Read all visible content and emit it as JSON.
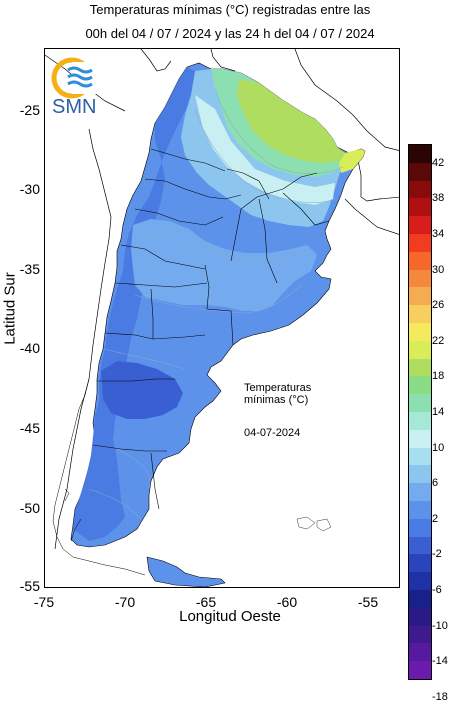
{
  "title": {
    "line1": "Temperaturas mínimas (°C) registradas entre las",
    "line2": "00h del 04 / 07 / 2024 y las 24 h del 04 / 07 / 2024"
  },
  "logo": {
    "text": "SMN"
  },
  "axes": {
    "xlabel": "Longitud Oeste",
    "ylabel": "Latitud Sur",
    "xticks": [
      "-75",
      "-70",
      "-65",
      "-60",
      "-55"
    ],
    "yticks": [
      "-25",
      "-30",
      "-35",
      "-40",
      "-45",
      "-50",
      "-55"
    ]
  },
  "annotation": {
    "title_line1": "Temperaturas",
    "title_line2": "mínimas (°C)",
    "date": "04-07-2024"
  },
  "legend": {
    "labels": [
      "42",
      "38",
      "34",
      "30",
      "26",
      "22",
      "18",
      "14",
      "10",
      "6",
      "2",
      "-2",
      "-6",
      "-10",
      "-14",
      "-18"
    ],
    "colors": [
      "#2a0505",
      "#5c0808",
      "#8a0b0b",
      "#b01010",
      "#d81c1c",
      "#f03d20",
      "#f4682b",
      "#f4893e",
      "#f4ab52",
      "#f7cf61",
      "#f5ea5e",
      "#d9ec5a",
      "#aedd60",
      "#89dc84",
      "#8cdfb0",
      "#a6e8d6",
      "#c8f0f2",
      "#a7dff0",
      "#8cc6ef",
      "#74aaee",
      "#5d92ea",
      "#4a7be3",
      "#3a5fd2",
      "#2a44bd",
      "#1e31a6",
      "#1a2089",
      "#2a1a86",
      "#3e1a8e",
      "#561aa0",
      "#6a1aac"
    ]
  },
  "chart_data": {
    "type": "map",
    "variable": "Temperaturas mínimas (°C)",
    "date": "04-07-2024",
    "lon_range": [
      -75,
      -53
    ],
    "lat_range": [
      -55.5,
      -21
    ],
    "legend_range": [
      -18,
      42
    ]
  }
}
